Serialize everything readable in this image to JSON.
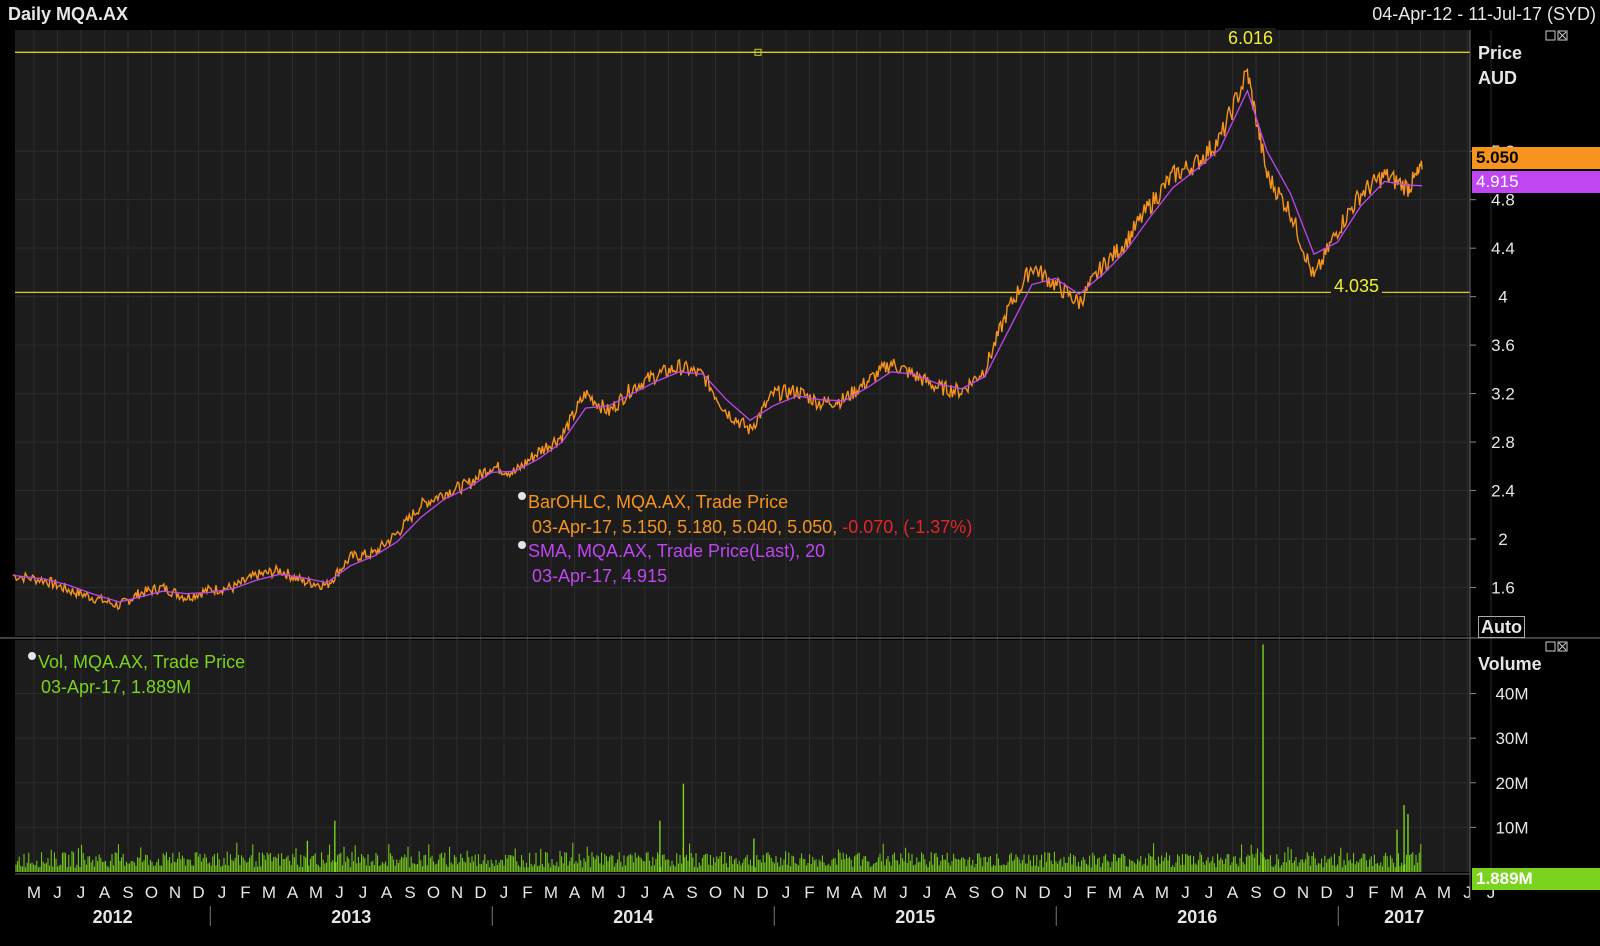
{
  "header": {
    "title": "Daily MQA.AX",
    "range": "04-Apr-12 - 11-Jul-17 (SYD)"
  },
  "price_panel": {
    "axis_title_1": "Price",
    "axis_title_2": "AUD",
    "auto_label": "Auto",
    "last_price_tag": "5.050",
    "sma_tag": "4.915",
    "high_label": "6.016",
    "low_label": "4.035",
    "legend": {
      "bar_title": "BarOHLC, MQA.AX, Trade Price",
      "bar_values": "03-Apr-17, 5.150, 5.180, 5.040, 5.050,",
      "bar_change": "-0.070, (-1.37%)",
      "sma_title": "SMA, MQA.AX, Trade Price(Last),  20",
      "sma_values": "03-Apr-17, 4.915"
    }
  },
  "volume_panel": {
    "axis_title": "Volume",
    "last_volume_tag": "1.889M",
    "legend": {
      "title": "Vol, MQA.AX, Trade Price",
      "values": "03-Apr-17, 1.889M"
    }
  },
  "colors": {
    "price": "#f7941d",
    "sma": "#c046f2",
    "volume": "#7ad31c",
    "hline": "#d4d020",
    "down": "#e8242a"
  },
  "chart_data": [
    {
      "type": "line",
      "title": "Daily MQA.AX",
      "ylabel": "Price AUD",
      "ylim": [
        1.2,
        6.2
      ],
      "yticks": [
        1.6,
        2,
        2.4,
        2.8,
        3.2,
        3.6,
        4,
        4.4,
        4.8,
        5.2
      ],
      "ytick_labels": [
        "1.6",
        "2",
        "2.4",
        "2.8",
        "3.2",
        "3.6",
        "4",
        "4.4",
        "4.8",
        "5.2"
      ],
      "month_labels": [
        "M",
        "J",
        "J",
        "A",
        "S",
        "O",
        "N",
        "D",
        "J",
        "F",
        "M",
        "A",
        "M",
        "J",
        "J",
        "A",
        "S",
        "O",
        "N",
        "D",
        "J",
        "F",
        "M",
        "A",
        "M",
        "J",
        "J",
        "A",
        "S",
        "O",
        "N",
        "D",
        "J",
        "F",
        "M",
        "A",
        "M",
        "J",
        "J",
        "A",
        "S",
        "O",
        "N",
        "D",
        "J",
        "F",
        "M",
        "A",
        "M",
        "J",
        "J",
        "A",
        "S",
        "O",
        "N",
        "D",
        "J",
        "F",
        "M",
        "A",
        "M",
        "J",
        "J"
      ],
      "year_labels": [
        "2012",
        "2013",
        "2014",
        "2015",
        "2016",
        "2017"
      ],
      "hlines": [
        6.016,
        4.035
      ],
      "series": [
        {
          "name": "BarOHLC, MQA.AX, Trade Price",
          "x": [
            "2012-04-04",
            "2012-05-15",
            "2012-06-15",
            "2012-07-15",
            "2012-08-20",
            "2012-09-15",
            "2012-10-15",
            "2012-11-15",
            "2012-12-15",
            "2013-01-15",
            "2013-02-15",
            "2013-03-15",
            "2013-04-15",
            "2013-05-15",
            "2013-06-15",
            "2013-07-15",
            "2013-08-15",
            "2013-09-15",
            "2013-10-15",
            "2013-11-15",
            "2013-12-15",
            "2014-01-15",
            "2014-02-15",
            "2014-03-15",
            "2014-04-15",
            "2014-05-15",
            "2014-06-15",
            "2014-07-15",
            "2014-08-15",
            "2014-09-15",
            "2014-10-15",
            "2014-11-15",
            "2014-12-15",
            "2015-01-15",
            "2015-02-15",
            "2015-03-15",
            "2015-04-15",
            "2015-05-15",
            "2015-06-15",
            "2015-07-15",
            "2015-08-15",
            "2015-09-15",
            "2015-10-15",
            "2015-11-15",
            "2015-12-15",
            "2016-01-15",
            "2016-02-15",
            "2016-03-15",
            "2016-04-15",
            "2016-05-15",
            "2016-06-15",
            "2016-07-15",
            "2016-08-20",
            "2016-09-15",
            "2016-10-15",
            "2016-11-15",
            "2016-12-15",
            "2017-01-15",
            "2017-02-15",
            "2017-03-15",
            "2017-04-03"
          ],
          "values": [
            1.7,
            1.66,
            1.58,
            1.52,
            1.45,
            1.55,
            1.6,
            1.52,
            1.58,
            1.6,
            1.7,
            1.74,
            1.65,
            1.62,
            1.85,
            1.88,
            2.05,
            2.28,
            2.38,
            2.45,
            2.6,
            2.55,
            2.72,
            2.85,
            3.2,
            3.05,
            3.25,
            3.35,
            3.42,
            3.35,
            3.05,
            2.9,
            3.2,
            3.22,
            3.12,
            3.15,
            3.3,
            3.45,
            3.35,
            3.25,
            3.22,
            3.4,
            3.9,
            4.25,
            4.1,
            3.95,
            4.25,
            4.45,
            4.75,
            5.0,
            5.1,
            5.3,
            5.85,
            5.0,
            4.7,
            4.15,
            4.55,
            4.85,
            5.0,
            4.9,
            5.05
          ]
        },
        {
          "name": "SMA, MQA.AX, Trade Price(Last),  20",
          "x": [
            "2012-04-04",
            "2012-05-15",
            "2012-06-15",
            "2012-07-15",
            "2012-08-20",
            "2012-09-15",
            "2012-10-15",
            "2012-11-15",
            "2012-12-15",
            "2013-01-15",
            "2013-02-15",
            "2013-03-15",
            "2013-04-15",
            "2013-05-15",
            "2013-06-15",
            "2013-07-15",
            "2013-08-15",
            "2013-09-15",
            "2013-10-15",
            "2013-11-15",
            "2013-12-15",
            "2014-01-15",
            "2014-02-15",
            "2014-03-15",
            "2014-04-15",
            "2014-05-15",
            "2014-06-15",
            "2014-07-15",
            "2014-08-15",
            "2014-09-15",
            "2014-10-15",
            "2014-11-15",
            "2014-12-15",
            "2015-01-15",
            "2015-02-15",
            "2015-03-15",
            "2015-04-15",
            "2015-05-15",
            "2015-06-15",
            "2015-07-15",
            "2015-08-15",
            "2015-09-15",
            "2015-10-15",
            "2015-11-15",
            "2015-12-15",
            "2016-01-15",
            "2016-02-15",
            "2016-03-15",
            "2016-04-15",
            "2016-05-15",
            "2016-06-15",
            "2016-07-15",
            "2016-08-20",
            "2016-09-15",
            "2016-10-15",
            "2016-11-15",
            "2016-12-15",
            "2017-01-15",
            "2017-02-15",
            "2017-03-15",
            "2017-04-03"
          ],
          "values": [
            1.7,
            1.67,
            1.62,
            1.55,
            1.48,
            1.52,
            1.57,
            1.55,
            1.56,
            1.59,
            1.66,
            1.71,
            1.68,
            1.64,
            1.78,
            1.86,
            1.98,
            2.18,
            2.33,
            2.42,
            2.55,
            2.56,
            2.66,
            2.8,
            3.08,
            3.1,
            3.2,
            3.3,
            3.38,
            3.36,
            3.15,
            2.98,
            3.1,
            3.18,
            3.15,
            3.14,
            3.25,
            3.38,
            3.36,
            3.28,
            3.24,
            3.34,
            3.72,
            4.1,
            4.15,
            4.02,
            4.18,
            4.38,
            4.65,
            4.9,
            5.05,
            5.22,
            5.7,
            5.2,
            4.85,
            4.35,
            4.45,
            4.75,
            4.95,
            4.92,
            4.915
          ]
        }
      ]
    },
    {
      "type": "bar",
      "title": "Vol, MQA.AX, Trade Price",
      "ylabel": "Volume",
      "ylim": [
        0,
        52
      ],
      "unit": "M",
      "yticks": [
        10,
        20,
        30,
        40
      ],
      "ytick_labels": [
        "10M",
        "20M",
        "30M",
        "40M"
      ],
      "spikes": [
        {
          "x": "2013-05-25",
          "value": 11.5
        },
        {
          "x": "2013-04-20",
          "value": 7.0
        },
        {
          "x": "2014-07-20",
          "value": 11.5
        },
        {
          "x": "2014-08-20",
          "value": 19.8
        },
        {
          "x": "2014-11-20",
          "value": 7.5
        },
        {
          "x": "2016-09-10",
          "value": 51.0
        },
        {
          "x": "2017-03-01",
          "value": 9.5
        },
        {
          "x": "2017-03-10",
          "value": 15.0
        },
        {
          "x": "2017-03-15",
          "value": 13.0
        }
      ],
      "baseline_range": [
        1.0,
        4.5
      ],
      "last_value": 1.889
    }
  ]
}
